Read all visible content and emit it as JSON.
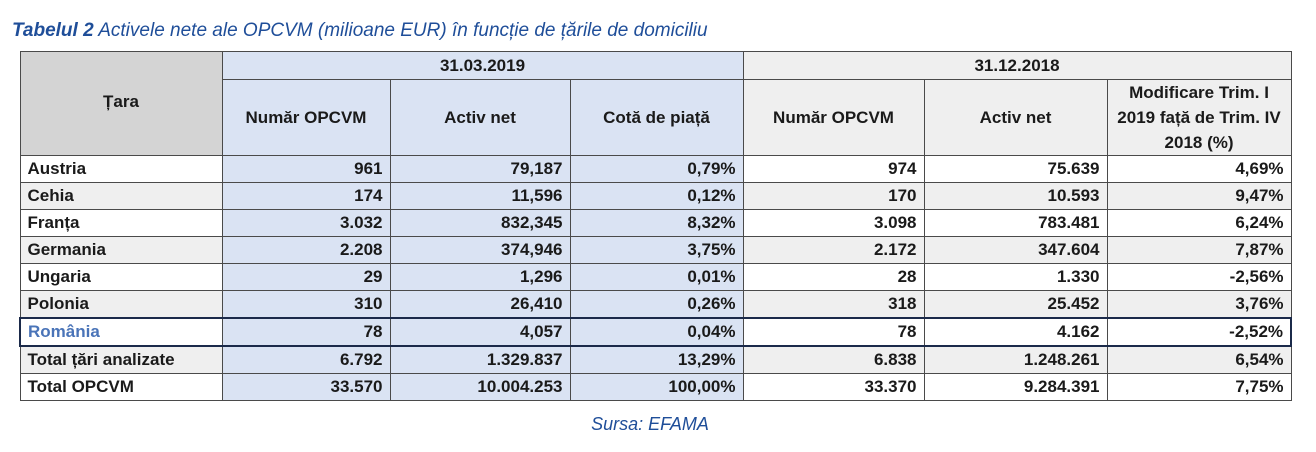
{
  "caption": {
    "label": "Tabelul 2",
    "text": "Activele nete ale OPCVM (milioane EUR) în funcție de țările de domiciliu"
  },
  "table": {
    "country_header": "Țara",
    "group_a": "31.03.2019",
    "group_b": "31.12.2018",
    "columns": [
      "Număr OPCVM",
      "Activ net",
      "Cotă de piață",
      "Număr OPCVM",
      "Activ net",
      "Modificare Trim. I 2019 față de Trim. IV 2018 (%)"
    ],
    "rows": [
      {
        "country": "Austria",
        "values": [
          "961",
          "79,187",
          "0,79%",
          "974",
          "75.639",
          "4,69%"
        ]
      },
      {
        "country": "Cehia",
        "values": [
          "174",
          "11,596",
          "0,12%",
          "170",
          "10.593",
          "9,47%"
        ]
      },
      {
        "country": "Franța",
        "values": [
          "3.032",
          "832,345",
          "8,32%",
          "3.098",
          "783.481",
          "6,24%"
        ]
      },
      {
        "country": "Germania",
        "values": [
          "2.208",
          "374,946",
          "3,75%",
          "2.172",
          "347.604",
          "7,87%"
        ]
      },
      {
        "country": "Ungaria",
        "values": [
          "29",
          "1,296",
          "0,01%",
          "28",
          "1.330",
          "-2,56%"
        ]
      },
      {
        "country": "Polonia",
        "values": [
          "310",
          "26,410",
          "0,26%",
          "318",
          "25.452",
          "3,76%"
        ]
      },
      {
        "country": "România",
        "values": [
          "78",
          "4,057",
          "0,04%",
          "78",
          "4.162",
          "-2,52%"
        ]
      },
      {
        "country": "Total țări analizate",
        "values": [
          "6.792",
          "1.329.837",
          "13,29%",
          "6.838",
          "1.248.261",
          "6,54%"
        ]
      },
      {
        "country": "Total OPCVM",
        "values": [
          "33.570",
          "10.004.253",
          "100,00%",
          "33.370",
          "9.284.391",
          "7,75%"
        ]
      }
    ]
  },
  "source": "Sursa: EFAMA",
  "colors": {
    "title_blue": "#1f4e99",
    "highlight_blue": "#4a74b8",
    "cell_blue": "#dae3f3",
    "cell_gray": "#efefef",
    "header_gray": "#d4d4d4"
  }
}
